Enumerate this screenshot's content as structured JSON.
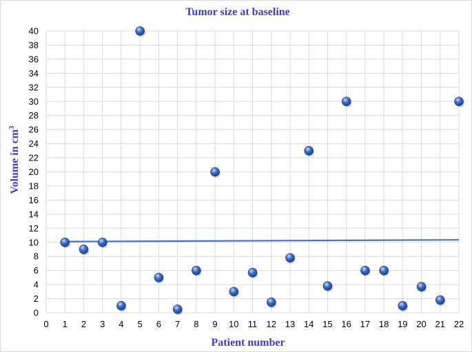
{
  "chart_data": {
    "type": "scatter",
    "title": "Tumor size at baseline",
    "xlabel": "Patient number",
    "ylabel_main": "Volume in cm",
    "ylabel_sup": "3",
    "xlim": [
      0,
      22
    ],
    "ylim": [
      0,
      40
    ],
    "x_ticks": [
      0,
      1,
      2,
      3,
      4,
      5,
      6,
      7,
      8,
      9,
      10,
      11,
      12,
      13,
      14,
      15,
      16,
      17,
      18,
      19,
      20,
      21,
      22
    ],
    "y_ticks": [
      0,
      2,
      4,
      6,
      8,
      10,
      12,
      14,
      16,
      18,
      20,
      22,
      24,
      26,
      28,
      30,
      32,
      34,
      36,
      38,
      40
    ],
    "grid": true,
    "legend": "none",
    "series": [
      {
        "x": [
          1,
          2,
          3,
          4,
          5,
          6,
          7,
          8,
          9,
          10,
          11,
          12,
          13,
          14,
          15,
          16,
          17,
          18,
          19,
          20,
          21,
          22
        ],
        "y": [
          10,
          9,
          10,
          1,
          40,
          5,
          0.5,
          6,
          20,
          3,
          5.7,
          1.5,
          7.8,
          23,
          3.8,
          30,
          6,
          6,
          1,
          3.7,
          1.8,
          30
        ]
      }
    ],
    "trendline": {
      "type": "linear",
      "y_at_x1": 10.1,
      "y_at_x22": 10.35
    },
    "colors": {
      "title": "#3b3bd9",
      "axis_title": "#3b3bd9",
      "marker_dark": "#1f3f80",
      "marker_mid": "#3f6fc4",
      "marker_light": "#c9dbf7",
      "trendline": "#4472c4",
      "grid": "#d9d9d9"
    }
  }
}
